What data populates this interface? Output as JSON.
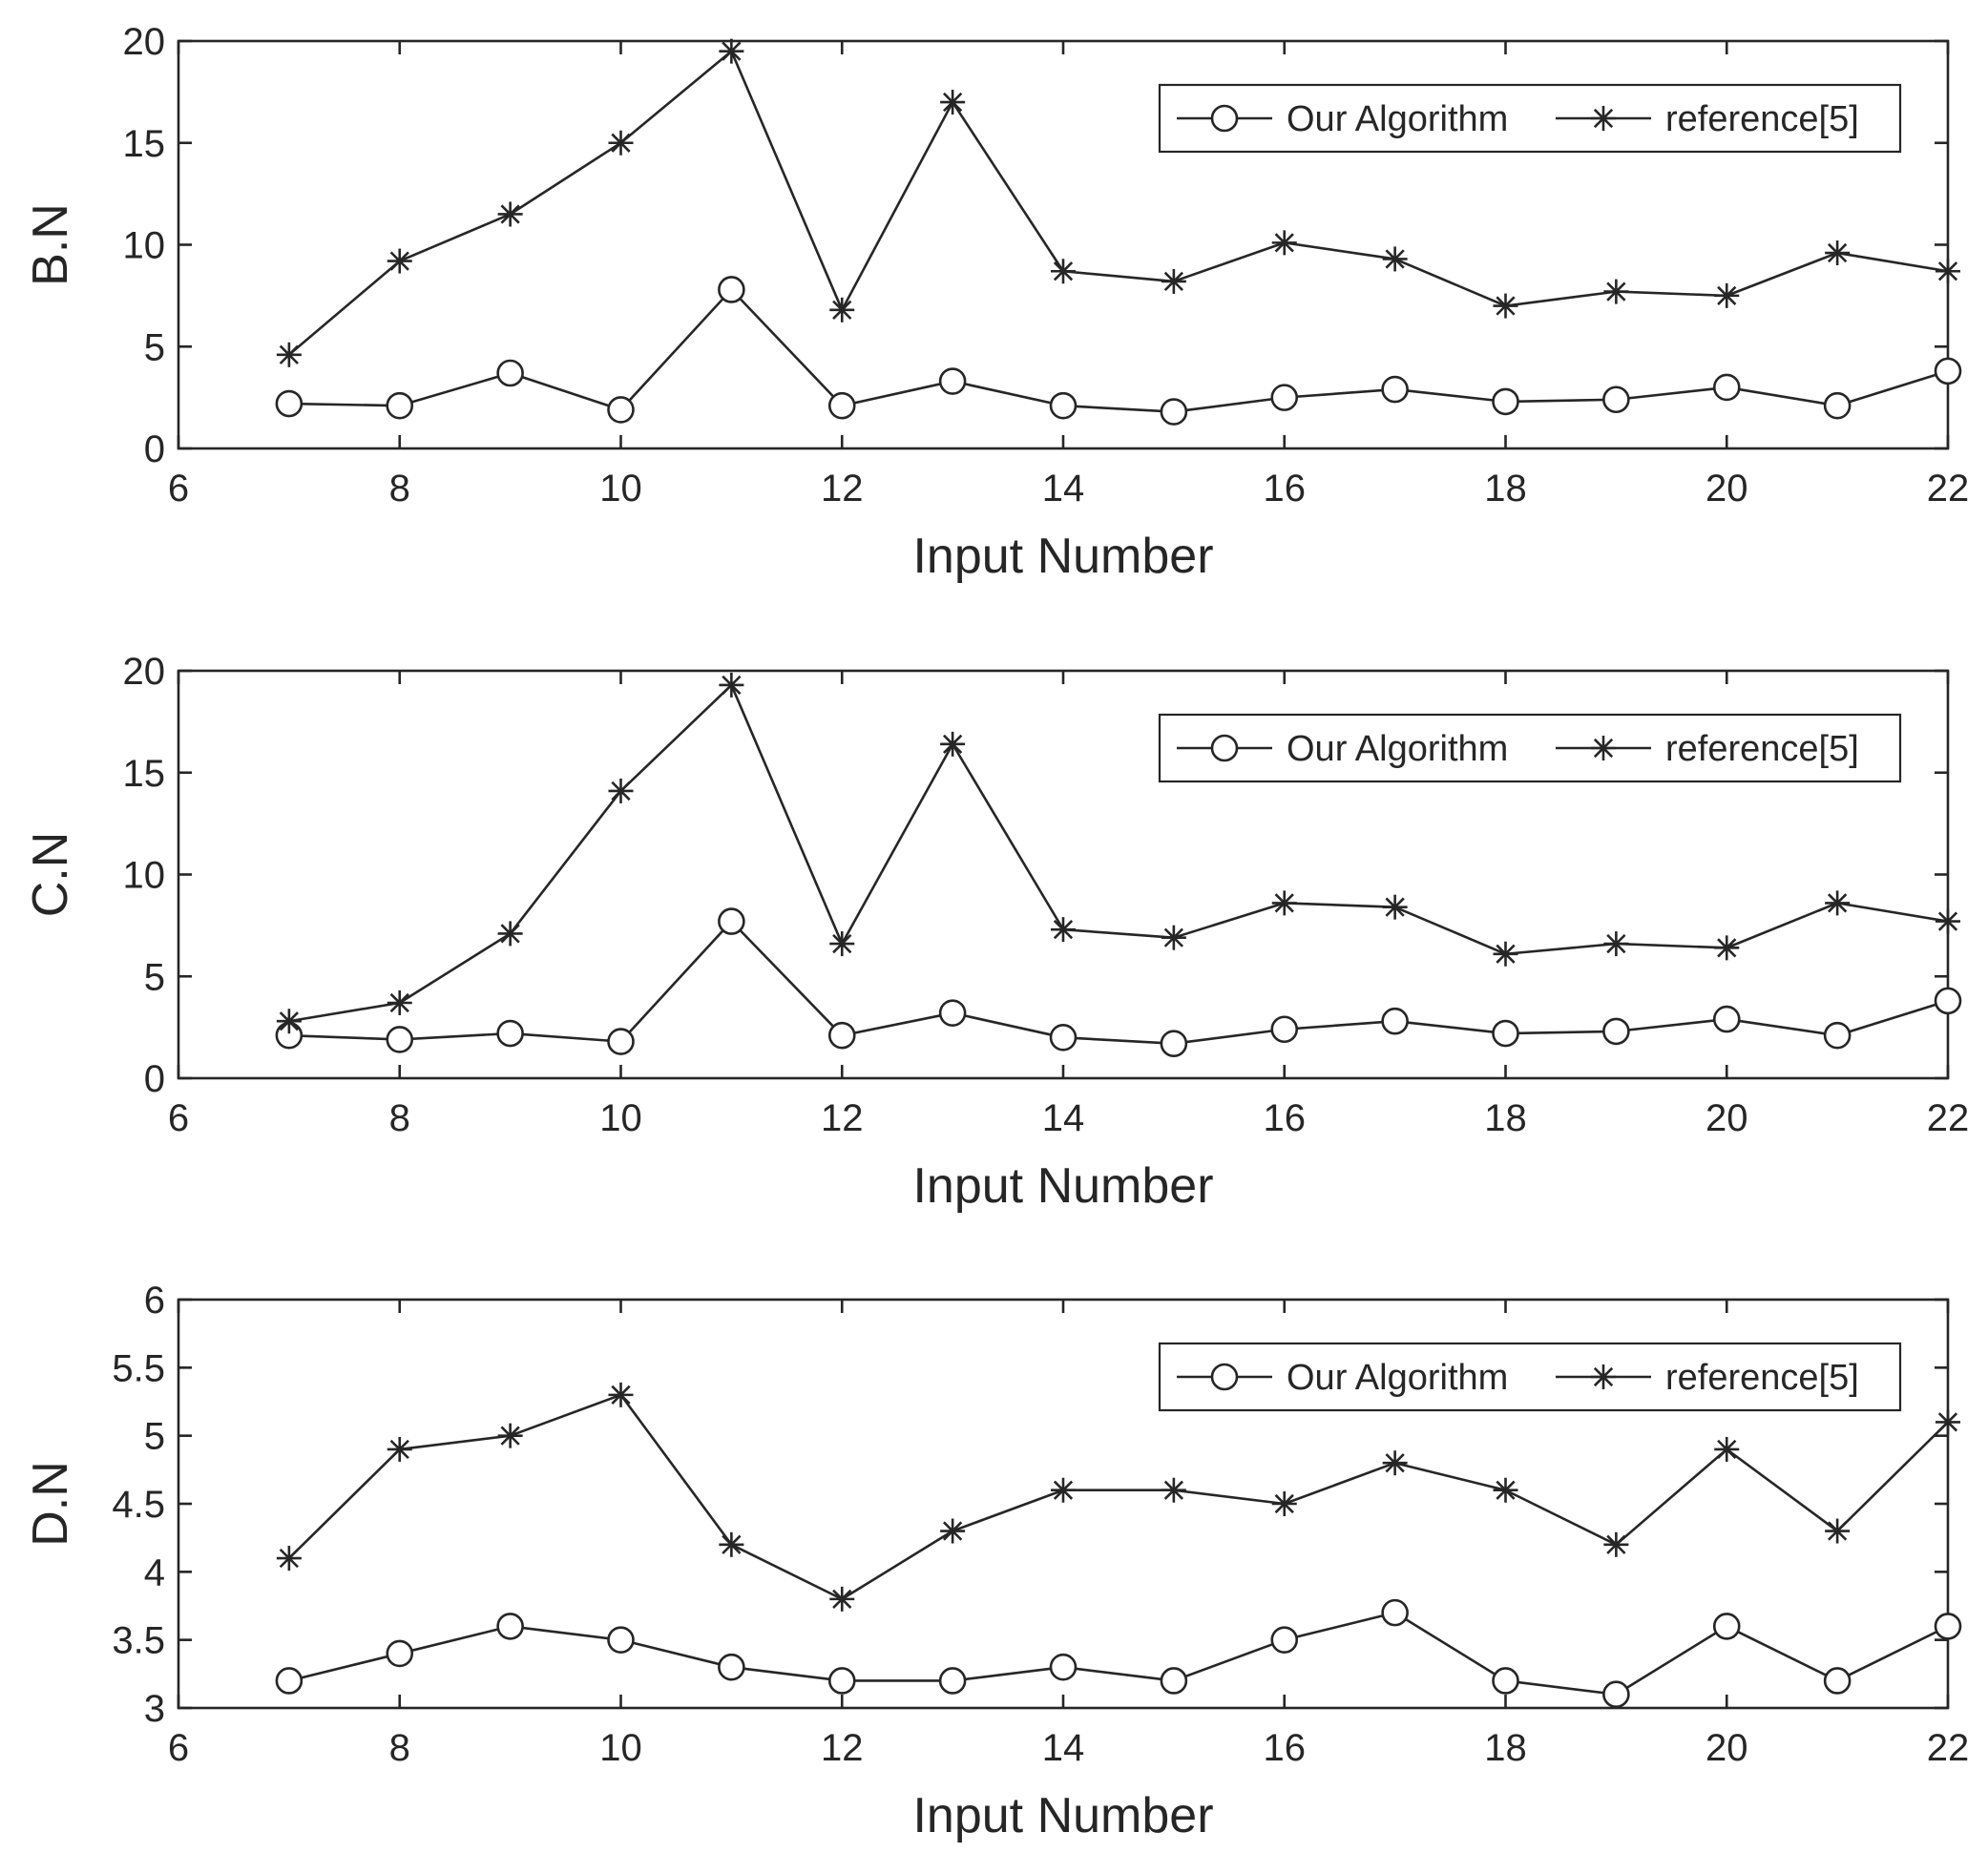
{
  "chart_data": [
    {
      "type": "line",
      "xlabel": "Input Number",
      "ylabel": "B.N",
      "xlim": [
        6,
        22
      ],
      "ylim": [
        0,
        20
      ],
      "x_ticks": [
        "6",
        "8",
        "10",
        "12",
        "14",
        "16",
        "18",
        "20",
        "22"
      ],
      "y_ticks": [
        "0",
        "5",
        "10",
        "15",
        "20"
      ],
      "legend_position": "top-right",
      "x": [
        7,
        8,
        9,
        10,
        11,
        12,
        13,
        14,
        15,
        16,
        17,
        18,
        19,
        20,
        21,
        22
      ],
      "series": [
        {
          "name": "Our Algorithm",
          "marker": "circle",
          "values": [
            2.2,
            2.1,
            3.7,
            1.9,
            7.8,
            2.1,
            3.3,
            2.1,
            1.8,
            2.5,
            2.9,
            2.3,
            2.4,
            3.0,
            2.1,
            3.8
          ]
        },
        {
          "name": "reference[5]",
          "marker": "asterisk",
          "values": [
            4.6,
            9.2,
            11.5,
            15.0,
            19.5,
            6.8,
            17.0,
            8.7,
            8.2,
            10.1,
            9.3,
            7.0,
            7.7,
            7.5,
            9.6,
            8.7
          ]
        }
      ]
    },
    {
      "type": "line",
      "xlabel": "Input Number",
      "ylabel": "C.N",
      "xlim": [
        6,
        22
      ],
      "ylim": [
        0,
        20
      ],
      "x_ticks": [
        "6",
        "8",
        "10",
        "12",
        "14",
        "16",
        "18",
        "20",
        "22"
      ],
      "y_ticks": [
        "0",
        "5",
        "10",
        "15",
        "20"
      ],
      "legend_position": "top-right",
      "x": [
        7,
        8,
        9,
        10,
        11,
        12,
        13,
        14,
        15,
        16,
        17,
        18,
        19,
        20,
        21,
        22
      ],
      "series": [
        {
          "name": "Our Algorithm",
          "marker": "circle",
          "values": [
            2.1,
            1.9,
            2.2,
            1.8,
            7.7,
            2.1,
            3.2,
            2.0,
            1.7,
            2.4,
            2.8,
            2.2,
            2.3,
            2.9,
            2.1,
            3.8
          ]
        },
        {
          "name": "reference[5]",
          "marker": "asterisk",
          "values": [
            2.8,
            3.7,
            7.1,
            14.1,
            19.3,
            6.6,
            16.4,
            7.3,
            6.9,
            8.6,
            8.4,
            6.1,
            6.6,
            6.4,
            8.6,
            7.7
          ]
        }
      ]
    },
    {
      "type": "line",
      "xlabel": "Input Number",
      "ylabel": "D.N",
      "xlim": [
        6,
        22
      ],
      "ylim": [
        3,
        6
      ],
      "x_ticks": [
        "6",
        "8",
        "10",
        "12",
        "14",
        "16",
        "18",
        "20",
        "22"
      ],
      "y_ticks": [
        "3",
        "3.5",
        "4",
        "4.5",
        "5",
        "5.5",
        "6"
      ],
      "legend_position": "top-right",
      "x": [
        7,
        8,
        9,
        10,
        11,
        12,
        13,
        14,
        15,
        16,
        17,
        18,
        19,
        20,
        21,
        22
      ],
      "series": [
        {
          "name": "Our Algorithm",
          "marker": "circle",
          "values": [
            3.2,
            3.4,
            3.6,
            3.5,
            3.3,
            3.2,
            3.2,
            3.3,
            3.2,
            3.5,
            3.7,
            3.2,
            3.1,
            3.6,
            3.2,
            3.6
          ]
        },
        {
          "name": "reference[5]",
          "marker": "asterisk",
          "values": [
            4.1,
            4.9,
            5.0,
            5.3,
            4.2,
            3.8,
            4.3,
            4.6,
            4.6,
            4.5,
            4.8,
            4.6,
            4.2,
            4.9,
            4.3,
            5.1
          ]
        }
      ]
    }
  ]
}
